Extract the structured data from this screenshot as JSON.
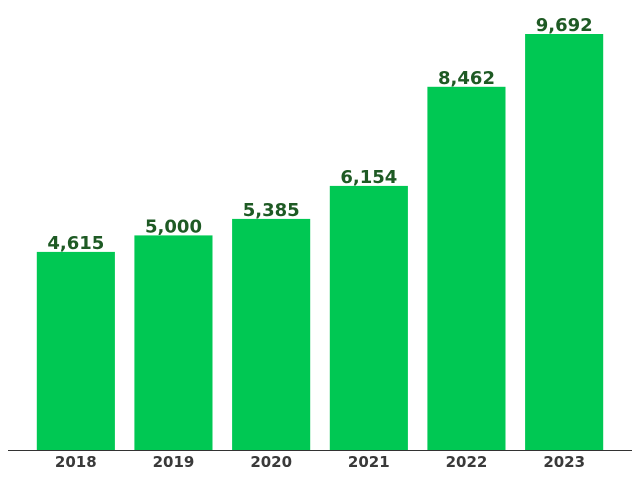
{
  "chart_data": {
    "type": "bar",
    "categories": [
      "2018",
      "2019",
      "2020",
      "2021",
      "2022",
      "2023"
    ],
    "values": [
      4615,
      5000,
      5385,
      6154,
      8462,
      9692
    ],
    "value_labels": [
      "4,615",
      "5,000",
      "5,385",
      "6,154",
      "8,462",
      "9,692"
    ],
    "title": "",
    "xlabel": "",
    "ylabel": "",
    "ylim": [
      0,
      10000
    ],
    "grid": false,
    "legend": "none",
    "bar_color": "#00c853",
    "label_color": "#1e5a24",
    "tick_color": "#3a3a3a",
    "axis_color": "#333333"
  }
}
